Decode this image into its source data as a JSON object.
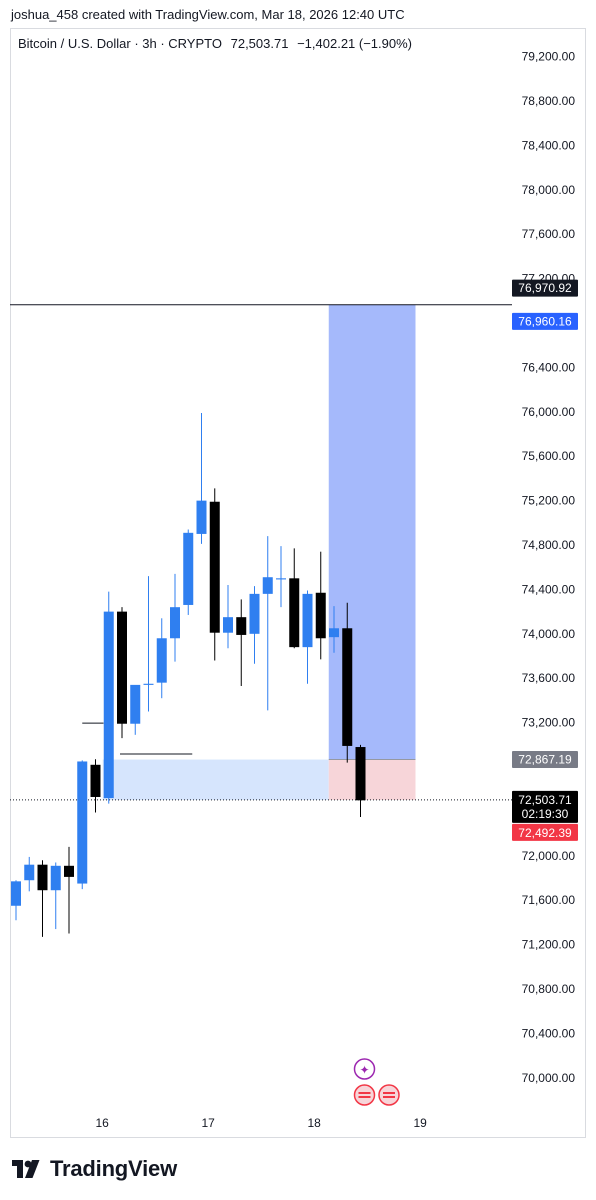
{
  "header": {
    "creator_line": "joshua_458 created with TradingView.com, Mar 18, 2026 12:40 UTC"
  },
  "symbol": {
    "name": "Bitcoin / U.S. Dollar · 3h · CRYPTO",
    "price": "72,503.71",
    "change": "−1,402.21 (−1.90%)"
  },
  "brand": {
    "name": "TradingView"
  },
  "colors": {
    "up": "#2f7ff0",
    "down": "#000000",
    "target_zone": "#a5b9fb",
    "stop_zone": "#f7d5d9",
    "entry_zone": "#d6e5fd",
    "label_blue": "#2962ff",
    "label_red": "#f23645",
    "label_gray": "#787b86"
  },
  "chart_data": {
    "type": "candlestick",
    "symbol": "Bitcoin / U.S. Dollar",
    "interval": "3h",
    "ylim": [
      69800,
      79350
    ],
    "y_ticks": [
      {
        "value": 79200,
        "label": "79,200.00"
      },
      {
        "value": 78800,
        "label": "78,800.00"
      },
      {
        "value": 78400,
        "label": "78,400.00"
      },
      {
        "value": 78000,
        "label": "78,000.00"
      },
      {
        "value": 77600,
        "label": "77,600.00"
      },
      {
        "value": 77200,
        "label": "77,200.00"
      },
      {
        "value": 76800,
        "label": "76,800.00"
      },
      {
        "value": 76400,
        "label": "76,400.00"
      },
      {
        "value": 76000,
        "label": "76,000.00"
      },
      {
        "value": 75600,
        "label": "75,600.00"
      },
      {
        "value": 75200,
        "label": "75,200.00"
      },
      {
        "value": 74800,
        "label": "74,800.00"
      },
      {
        "value": 74400,
        "label": "74,400.00"
      },
      {
        "value": 74000,
        "label": "74,000.00"
      },
      {
        "value": 73600,
        "label": "73,600.00"
      },
      {
        "value": 73200,
        "label": "73,200.00"
      },
      {
        "value": 72000,
        "label": "72,000.00"
      },
      {
        "value": 71600,
        "label": "71,600.00"
      },
      {
        "value": 71200,
        "label": "71,200.00"
      },
      {
        "value": 70800,
        "label": "70,800.00"
      },
      {
        "value": 70400,
        "label": "70,400.00"
      },
      {
        "value": 70000,
        "label": "70,000.00"
      }
    ],
    "x_ticks": [
      {
        "index": 6.5,
        "label": "16"
      },
      {
        "index": 14.5,
        "label": "17"
      },
      {
        "index": 22.5,
        "label": "18"
      },
      {
        "index": 30.5,
        "label": "19"
      }
    ],
    "candles": [
      {
        "o": 71550,
        "h": 71780,
        "l": 71420,
        "c": 71770
      },
      {
        "o": 71780,
        "h": 71990,
        "l": 71680,
        "c": 71920
      },
      {
        "o": 71920,
        "h": 71960,
        "l": 71270,
        "c": 71690
      },
      {
        "o": 71690,
        "h": 71940,
        "l": 71340,
        "c": 71910
      },
      {
        "o": 71910,
        "h": 72080,
        "l": 71300,
        "c": 71810
      },
      {
        "o": 71750,
        "h": 72860,
        "l": 71700,
        "c": 72850
      },
      {
        "o": 72820,
        "h": 72870,
        "l": 72390,
        "c": 72530
      },
      {
        "o": 72520,
        "h": 74380,
        "l": 72470,
        "c": 74200
      },
      {
        "o": 74200,
        "h": 74240,
        "l": 73060,
        "c": 73190
      },
      {
        "o": 73190,
        "h": 73520,
        "l": 73090,
        "c": 73540
      },
      {
        "o": 73540,
        "h": 74520,
        "l": 73300,
        "c": 73550
      },
      {
        "o": 73560,
        "h": 74140,
        "l": 73420,
        "c": 73960
      },
      {
        "o": 73960,
        "h": 74540,
        "l": 73750,
        "c": 74240
      },
      {
        "o": 74260,
        "h": 74940,
        "l": 74170,
        "c": 74910
      },
      {
        "o": 74900,
        "h": 75990,
        "l": 74810,
        "c": 75200
      },
      {
        "o": 75190,
        "h": 75310,
        "l": 73760,
        "c": 74010
      },
      {
        "o": 74010,
        "h": 74440,
        "l": 73870,
        "c": 74150
      },
      {
        "o": 74150,
        "h": 74310,
        "l": 73530,
        "c": 73990
      },
      {
        "o": 74000,
        "h": 74430,
        "l": 73730,
        "c": 74360
      },
      {
        "o": 74360,
        "h": 74880,
        "l": 73310,
        "c": 74510
      },
      {
        "o": 74490,
        "h": 74790,
        "l": 74240,
        "c": 74500
      },
      {
        "o": 74500,
        "h": 74770,
        "l": 73870,
        "c": 73880
      },
      {
        "o": 73880,
        "h": 74390,
        "l": 73550,
        "c": 74360
      },
      {
        "o": 74370,
        "h": 74740,
        "l": 73770,
        "c": 73960
      },
      {
        "o": 73970,
        "h": 74250,
        "l": 73830,
        "c": 74050
      },
      {
        "o": 74050,
        "h": 74280,
        "l": 72840,
        "c": 72990
      },
      {
        "o": 72980,
        "h": 73000,
        "l": 72350,
        "c": 72500
      }
    ],
    "horizontal_line": {
      "value": 76965,
      "ref_label": "76,970.92",
      "blue_label": "76,960.16"
    },
    "position": {
      "type": "long",
      "entry": 72867.19,
      "target": 76965,
      "stop": 72503.71,
      "entry_label": "72,867.19"
    },
    "last_price": {
      "value": 72503.71,
      "label": "72,503.71",
      "countdown": "02:19:30"
    },
    "bid_label": "72,492.39"
  }
}
